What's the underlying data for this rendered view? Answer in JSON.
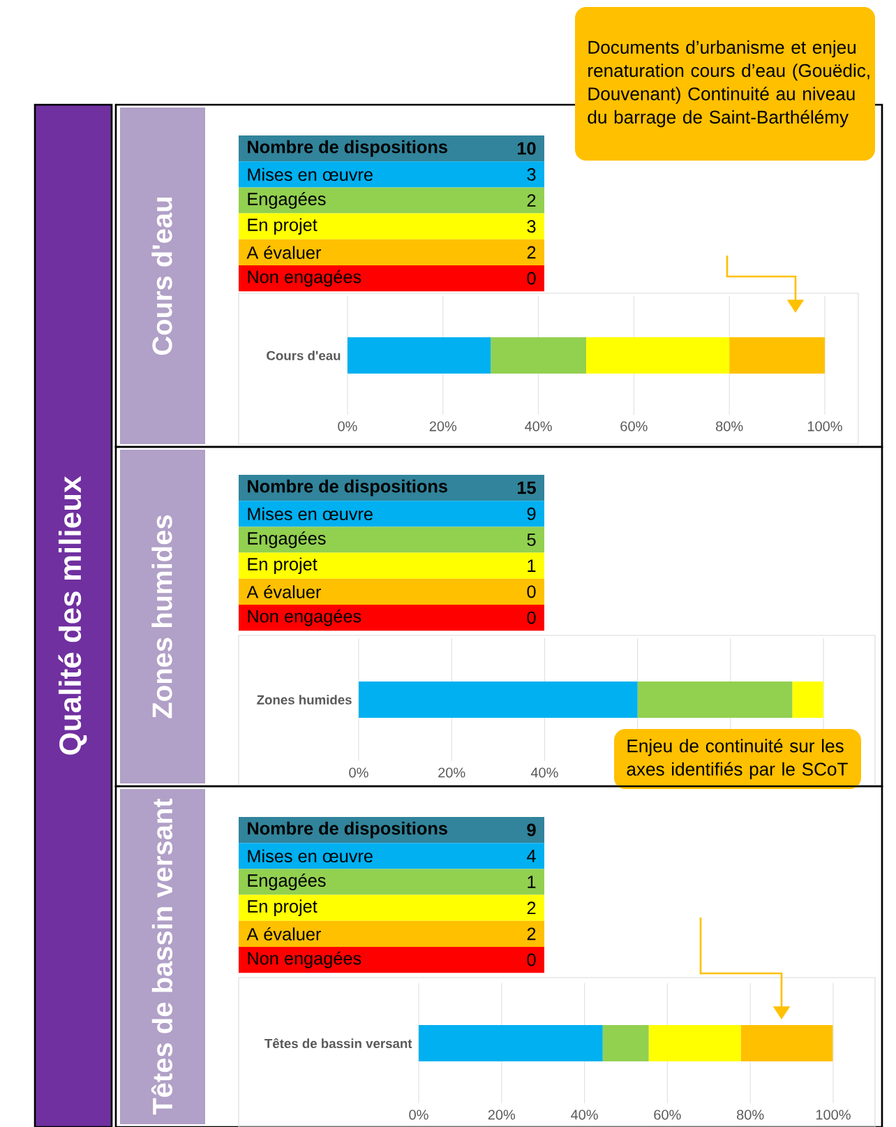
{
  "chart_data": [
    {
      "type": "other",
      "title": "Nombre de dispositions",
      "annotations": [
        "10"
      ],
      "data_labels": true,
      "categories": [
        "Mises en œuvre",
        "Engagées",
        "En projet",
        "A évaluer",
        "Non engagées"
      ],
      "values": [
        3,
        2,
        3,
        2,
        0
      ],
      "colors": [
        "#00b0f0",
        "#92d050",
        "#ffff00",
        "#ffc000",
        "#ff0000"
      ]
    },
    {
      "type": "bar",
      "orientation": "horizontal",
      "stacked": true,
      "title": "Cours d'eau",
      "grid": "x",
      "categories": [
        "Cours d'eau"
      ],
      "series": [
        {
          "color": "#00b0f0",
          "values": [
            30
          ]
        },
        {
          "color": "#92d050",
          "values": [
            20
          ]
        },
        {
          "color": "#ffff00",
          "values": [
            30
          ]
        },
        {
          "color": "#ffc000",
          "values": [
            20
          ]
        },
        {
          "color": "#ff0000",
          "values": [
            0
          ]
        }
      ],
      "xlim": [
        0,
        100
      ],
      "xticks": [
        {
          "value": 0,
          "label": "0%"
        },
        {
          "value": 20,
          "label": "20%"
        },
        {
          "value": 40,
          "label": "40%"
        },
        {
          "value": 60,
          "label": "60%"
        },
        {
          "value": 80,
          "label": "80%"
        },
        {
          "value": 100,
          "label": "100%"
        }
      ],
      "annotations": [
        "Qualité des milieux",
        "Documents d’urbanisme et enjeu renaturation cours d’eau (Gouëdic, Douvenant) Continuité au niveau du barrage de Saint-Barthélémy"
      ]
    },
    {
      "type": "other",
      "title": "Nombre de dispositions",
      "annotations": [
        "15"
      ],
      "data_labels": true,
      "categories": [
        "Mises en œuvre",
        "Engagées",
        "En projet",
        "A évaluer",
        "Non engagées"
      ],
      "values": [
        9,
        5,
        1,
        0,
        0
      ],
      "colors": [
        "#00b0f0",
        "#92d050",
        "#ffff00",
        "#ffc000",
        "#ff0000"
      ]
    },
    {
      "type": "bar",
      "orientation": "horizontal",
      "stacked": true,
      "title": "Zones humides",
      "grid": "x",
      "categories": [
        "Zones humides"
      ],
      "series": [
        {
          "color": "#00b0f0",
          "values": [
            60
          ]
        },
        {
          "color": "#92d050",
          "values": [
            33.3
          ]
        },
        {
          "color": "#ffff00",
          "values": [
            6.7
          ]
        },
        {
          "color": "#ffc000",
          "values": [
            0
          ]
        },
        {
          "color": "#ff0000",
          "values": [
            0
          ]
        }
      ],
      "xlim": [
        0,
        100
      ],
      "xticks": [
        {
          "value": 0,
          "label": "0%"
        },
        {
          "value": 20,
          "label": "20%"
        },
        {
          "value": 40,
          "label": "40%"
        },
        {
          "value": 60,
          "label": null
        },
        {
          "value": 80,
          "label": null
        },
        {
          "value": 100,
          "label": null
        }
      ],
      "annotations": [
        "Enjeu de continuité sur les axes identifiés par le SCoT"
      ]
    },
    {
      "type": "other",
      "title": "Nombre de dispositions",
      "annotations": [
        "9"
      ],
      "data_labels": true,
      "categories": [
        "Mises en œuvre",
        "Engagées",
        "En projet",
        "A évaluer",
        "Non engagées"
      ],
      "values": [
        4,
        1,
        2,
        2,
        0
      ],
      "colors": [
        "#00b0f0",
        "#92d050",
        "#ffff00",
        "#ffc000",
        "#ff0000"
      ]
    },
    {
      "type": "bar",
      "orientation": "horizontal",
      "stacked": true,
      "title": "Têtes de bassin versant",
      "grid": "x",
      "categories": [
        "Têtes de bassin versant"
      ],
      "series": [
        {
          "color": "#00b0f0",
          "values": [
            44.4
          ]
        },
        {
          "color": "#92d050",
          "values": [
            11.1
          ]
        },
        {
          "color": "#ffff00",
          "values": [
            22.2
          ]
        },
        {
          "color": "#ffc000",
          "values": [
            22.2
          ]
        },
        {
          "color": "#ff0000",
          "values": [
            0
          ]
        }
      ],
      "xlim": [
        0,
        100
      ],
      "xticks": [
        {
          "value": 0,
          "label": "0%"
        },
        {
          "value": 20,
          "label": "20%"
        },
        {
          "value": 40,
          "label": "40%"
        },
        {
          "value": 60,
          "label": "60%"
        },
        {
          "value": 80,
          "label": "80%"
        },
        {
          "value": 100,
          "label": "100%"
        }
      ]
    }
  ]
}
